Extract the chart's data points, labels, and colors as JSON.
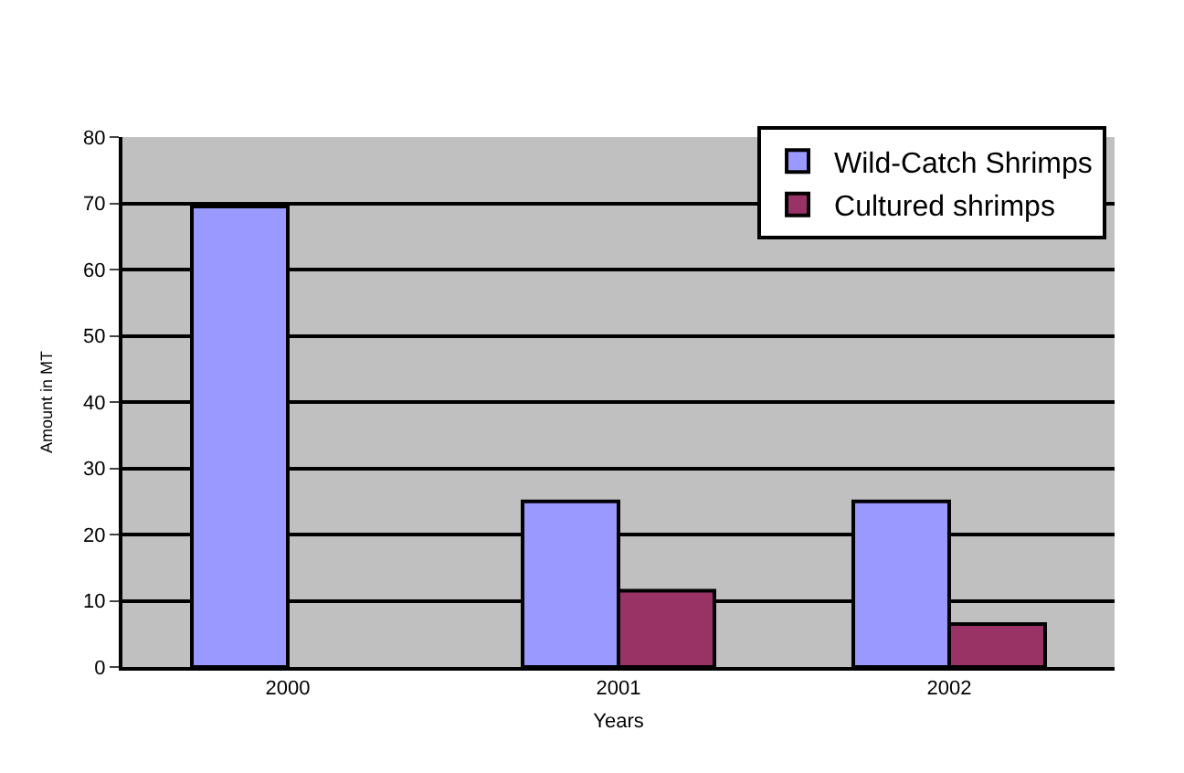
{
  "chart_data": {
    "type": "bar",
    "xlabel": "Years",
    "ylabel": "Amount in MT",
    "categories": [
      "2000",
      "2001",
      "2002"
    ],
    "series": [
      {
        "name": "Wild-Catch Shrimps",
        "color": "#9999ff",
        "values": [
          69.5,
          25,
          25
        ]
      },
      {
        "name": "Cultured shrimps",
        "color": "#993366",
        "values": [
          null,
          11.5,
          6.5
        ]
      }
    ],
    "ylim": [
      0,
      80
    ],
    "yticks": [
      0,
      10,
      20,
      30,
      40,
      50,
      60,
      70,
      80
    ],
    "grid": "y",
    "legend": "top right"
  }
}
